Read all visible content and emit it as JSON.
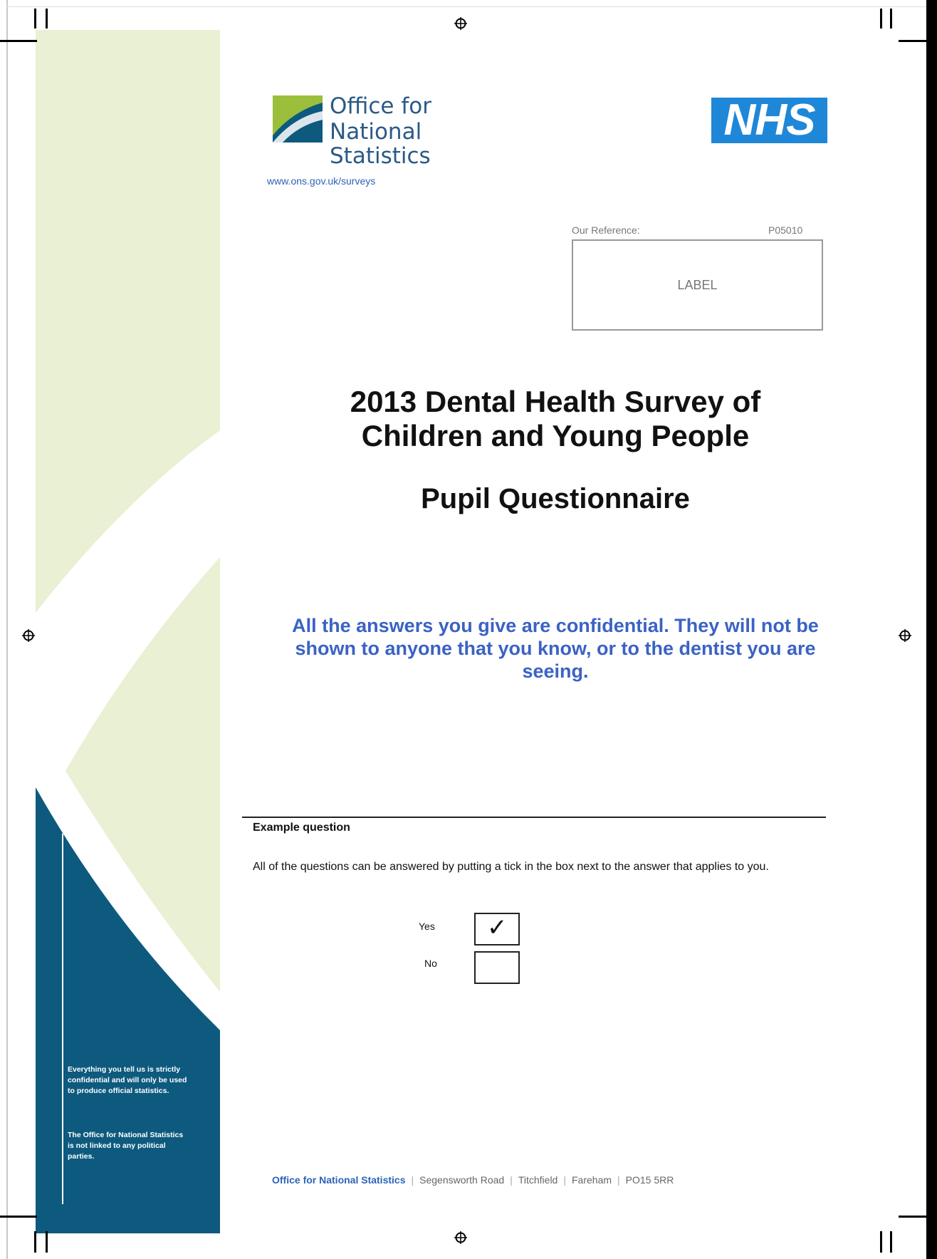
{
  "header": {
    "ons_logo_line1": "Office for",
    "ons_logo_line2": "National Statistics",
    "nhs_logo": "NHS",
    "website": "www.ons.gov.uk/surveys"
  },
  "reference": {
    "caption": "Our Reference:",
    "code": "P05010",
    "label_placeholder": "LABEL"
  },
  "titles": {
    "line1": "2013 Dental Health Survey of",
    "line2": "Children and Young People",
    "subtitle": "Pupil Questionnaire"
  },
  "confidential_notice": "All the answers you give are confidential. They will not be shown to anyone that you know, or to the dentist you are seeing.",
  "example": {
    "heading": "Example question",
    "instruction": "All of the questions can be answered by putting a tick in the box next to the answer that applies to you.",
    "options": [
      {
        "label": "Yes",
        "checked": true
      },
      {
        "label": "No",
        "checked": false
      }
    ],
    "tick": "✓"
  },
  "side_panel": {
    "note1": "Everything you tell us is strictly confidential and will only be used to produce official statistics.",
    "note2": "The Office for National Statistics is not linked to any political parties."
  },
  "footer": {
    "org": "Office for National Statistics",
    "address_parts": [
      "Segensworth Road",
      "Titchfield",
      "Fareham",
      "PO15 5RR"
    ]
  },
  "colors": {
    "panel_light": "#e9f0d3",
    "panel_dark": "#0d5a7e",
    "ons_blue": "#2b5a86",
    "nhs_blue": "#1f87d8",
    "notice_blue": "#3b62c4"
  }
}
